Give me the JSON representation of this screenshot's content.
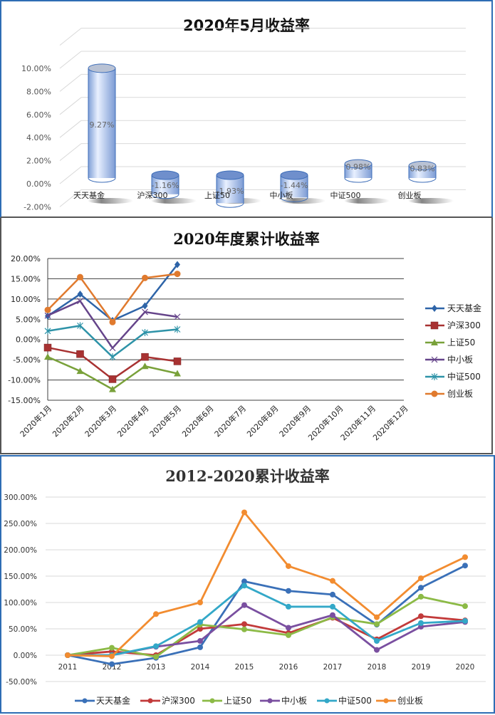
{
  "colors": {
    "panel_border_blue": "#2e6db4",
    "panel_border_gray": "#555555",
    "gridline": "#d9d9d9",
    "gridline_dark": "#404040"
  },
  "chart_data": [
    {
      "id": "monthly",
      "type": "bar",
      "style": "3d-cylinder",
      "title": "2020年5月收益率",
      "categories": [
        "天天基金",
        "沪深300",
        "上证50",
        "中小板",
        "中证500",
        "创业板"
      ],
      "values": [
        9.27,
        -1.16,
        -1.93,
        -1.44,
        0.98,
        0.83
      ],
      "data_labels": [
        "9.27%",
        "-1.16%",
        "-1.93%",
        "-1.44%",
        "0.98%",
        "0.83%"
      ],
      "xlabel": "",
      "ylabel": "",
      "ylim": [
        -2,
        10
      ],
      "yticks": [
        "10.00%",
        "8.00%",
        "6.00%",
        "4.00%",
        "2.00%",
        "0.00%",
        "-2.00%"
      ],
      "grid": true,
      "legend": "none",
      "bar_color": "#9fbde8"
    },
    {
      "id": "ytd",
      "type": "line",
      "title": "2020年度累计收益率",
      "categories": [
        "2020年1月",
        "2020年2月",
        "2020年3月",
        "2020年4月",
        "2020年5月",
        "2020年6月",
        "2020年7月",
        "2020年8月",
        "2020年9月",
        "2020年10月",
        "2020年11月",
        "2020年12月"
      ],
      "series": [
        {
          "name": "天天基金",
          "color": "#2e64a8",
          "marker": "diamond",
          "values": [
            5.8,
            11.2,
            4.7,
            8.3,
            18.5
          ]
        },
        {
          "name": "沪深300",
          "color": "#a83232",
          "marker": "square",
          "values": [
            -2.0,
            -3.6,
            -9.8,
            -4.3,
            -5.4
          ]
        },
        {
          "name": "上证50",
          "color": "#79a13a",
          "marker": "triangle",
          "values": [
            -4.3,
            -7.8,
            -12.3,
            -6.6,
            -8.4
          ]
        },
        {
          "name": "中小板",
          "color": "#65448a",
          "marker": "x",
          "values": [
            5.9,
            9.5,
            -2.1,
            6.8,
            5.6
          ]
        },
        {
          "name": "中证500",
          "color": "#2e93a8",
          "marker": "star",
          "values": [
            2.1,
            3.4,
            -4.3,
            1.7,
            2.5
          ]
        },
        {
          "name": "创业板",
          "color": "#e07a2e",
          "marker": "circle",
          "values": [
            7.3,
            15.4,
            4.3,
            15.2,
            16.2
          ]
        }
      ],
      "xlabel": "",
      "ylabel": "",
      "ylim": [
        -15,
        20
      ],
      "yticks": [
        "20.00%",
        "15.00%",
        "10.00%",
        "5.00%",
        "0.00%",
        "-5.00%",
        "-10.00%",
        "-15.00%"
      ],
      "grid": true,
      "legend": "right"
    },
    {
      "id": "cumulative",
      "type": "line",
      "title": "2012-2020累计收益率",
      "categories": [
        "2011",
        "2012",
        "2013",
        "2014",
        "2015",
        "2016",
        "2017",
        "2018",
        "2019",
        "2020"
      ],
      "series": [
        {
          "name": "天天基金",
          "color": "#3a70b8",
          "values": [
            0,
            -17,
            -5,
            15,
            140,
            122,
            115,
            58,
            128,
            170
          ]
        },
        {
          "name": "沪深300",
          "color": "#c23a3a",
          "values": [
            0,
            7,
            0,
            50,
            59,
            42,
            71,
            30,
            74,
            66
          ]
        },
        {
          "name": "上证50",
          "color": "#8cba46",
          "values": [
            0,
            14,
            -3,
            58,
            49,
            38,
            72,
            59,
            111,
            93
          ]
        },
        {
          "name": "中小板",
          "color": "#7a4fa0",
          "values": [
            0,
            0,
            16,
            27,
            95,
            52,
            76,
            10,
            54,
            63
          ]
        },
        {
          "name": "中证500",
          "color": "#33a8c8",
          "values": [
            0,
            0,
            17,
            63,
            132,
            92,
            92,
            27,
            61,
            65
          ]
        },
        {
          "name": "创业板",
          "color": "#f28c30",
          "values": [
            0,
            -2,
            78,
            100,
            271,
            169,
            141,
            72,
            146,
            186
          ]
        }
      ],
      "xlabel": "",
      "ylabel": "",
      "ylim": [
        -50,
        300
      ],
      "yticks": [
        "300.00%",
        "250.00%",
        "200.00%",
        "150.00%",
        "100.00%",
        "50.00%",
        "0.00%",
        "-50.00%"
      ],
      "grid": true,
      "legend": "bottom"
    }
  ]
}
